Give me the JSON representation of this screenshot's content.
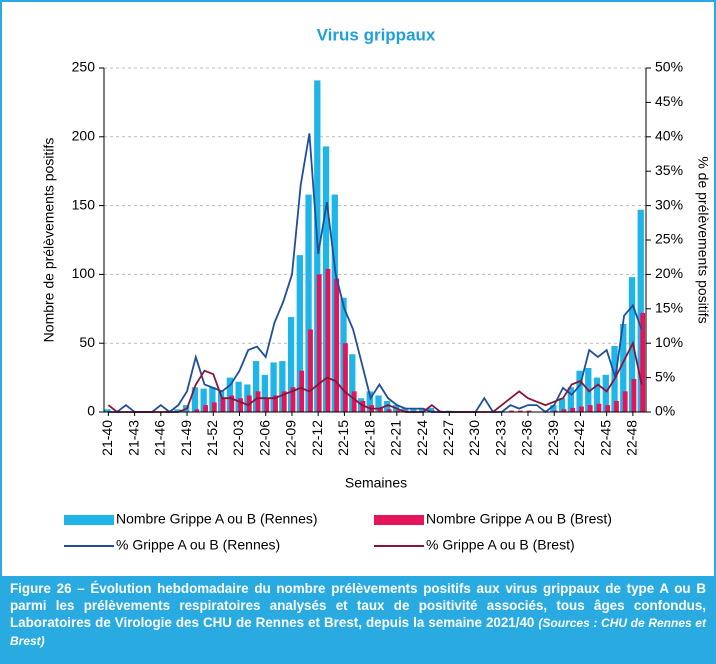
{
  "chart_data": {
    "type": "combo",
    "title": "Virus grippaux",
    "x_label": "Semaines",
    "y_label": "Nombre de prélèvements positifs",
    "y2_label": "% de prélèvements positifs",
    "categories": [
      "21-40",
      null,
      null,
      "21-43",
      null,
      null,
      "21-46",
      null,
      null,
      "21-49",
      null,
      null,
      "21-52",
      null,
      null,
      "22-03",
      null,
      null,
      "22-06",
      null,
      null,
      "22-09",
      null,
      null,
      "22-12",
      null,
      null,
      "22-15",
      null,
      null,
      "22-18",
      null,
      null,
      "22-21",
      null,
      null,
      "22-24",
      null,
      null,
      "22-27",
      null,
      null,
      "22-30",
      null,
      null,
      "22-33",
      null,
      null,
      "22-36",
      null,
      null,
      "22-39",
      null,
      null,
      "22-42",
      null,
      null,
      "22-45",
      null,
      null,
      "22-48",
      null
    ],
    "ylim": [
      0,
      250
    ],
    "yticks": [
      0,
      50,
      100,
      150,
      200,
      250
    ],
    "y2lim": [
      0,
      50
    ],
    "y2ticks": [
      {
        "value": 0,
        "label": "0%"
      },
      {
        "value": 5,
        "label": "5%"
      },
      {
        "value": 10,
        "label": "10%"
      },
      {
        "value": 15,
        "label": "15%"
      },
      {
        "value": 20,
        "label": "20%"
      },
      {
        "value": 25,
        "label": "25%"
      },
      {
        "value": 30,
        "label": "30%"
      },
      {
        "value": 35,
        "label": "35%"
      },
      {
        "value": 40,
        "label": "40%"
      },
      {
        "value": 45,
        "label": "45%"
      },
      {
        "value": 50,
        "label": "50%"
      }
    ],
    "grid": true,
    "series": [
      {
        "name": "Nombre Grippe A ou B (Rennes)",
        "type": "bar",
        "color": "#1fb5e8",
        "values": [
          2,
          0,
          0,
          0,
          0,
          0,
          0,
          1,
          2,
          5,
          18,
          17,
          18,
          15,
          25,
          22,
          20,
          37,
          27,
          36,
          37,
          69,
          114,
          158,
          241,
          193,
          158,
          83,
          42,
          10,
          15,
          12,
          8,
          5,
          3,
          2,
          2,
          3,
          1,
          1,
          0,
          0,
          0,
          0,
          0,
          0,
          0,
          0,
          0,
          0,
          0,
          5,
          10,
          18,
          30,
          32,
          25,
          27,
          48,
          64,
          98,
          147
        ]
      },
      {
        "name": "Nombre Grippe A ou B (Brest)",
        "type": "bar",
        "color": "#e5135a",
        "values": [
          0,
          0,
          0,
          0,
          0,
          0,
          0,
          0,
          0,
          0,
          2,
          5,
          7,
          10,
          12,
          10,
          12,
          15,
          10,
          12,
          15,
          18,
          30,
          60,
          100,
          104,
          97,
          50,
          15,
          8,
          5,
          3,
          2,
          1,
          1,
          0,
          0,
          1,
          0,
          0,
          0,
          0,
          0,
          0,
          0,
          0,
          1,
          1,
          1,
          0,
          0,
          1,
          2,
          3,
          4,
          5,
          6,
          5,
          8,
          15,
          24,
          72
        ]
      },
      {
        "name": "% Grippe A ou B (Rennes)",
        "type": "line",
        "axis": "y2",
        "color": "#1f4e9c",
        "values": [
          0,
          0,
          1,
          0,
          0,
          0,
          1,
          0,
          1,
          3,
          8,
          4,
          3.5,
          3,
          4,
          6,
          9,
          9.5,
          8,
          13,
          16,
          20,
          33,
          40.5,
          23,
          30.5,
          20,
          15,
          12,
          7,
          2,
          4,
          2,
          1,
          0.5,
          0.5,
          0.5,
          0,
          0,
          0,
          0,
          0,
          0,
          2,
          0,
          0,
          1,
          0.5,
          1,
          1,
          0,
          1,
          3.5,
          2.5,
          4,
          9,
          8,
          9,
          5,
          14,
          15.5,
          12
        ]
      },
      {
        "name": "% Grippe A ou B (Brest)",
        "type": "line",
        "axis": "y2",
        "color": "#8b1538",
        "values": [
          1,
          0,
          0,
          0,
          0,
          0,
          0,
          0,
          0,
          0.5,
          4,
          6,
          5.5,
          2,
          2,
          1.5,
          1,
          2,
          2,
          2,
          2.5,
          3,
          3.5,
          3,
          4,
          5,
          4.5,
          3,
          2,
          1,
          0.5,
          0.5,
          1,
          0.5,
          0,
          0,
          0,
          1,
          0,
          0,
          0,
          0,
          0,
          0,
          0,
          1,
          2,
          3,
          2,
          1.5,
          1,
          1.5,
          2,
          4,
          4.5,
          3,
          4,
          3,
          5,
          7.5,
          10,
          4
        ]
      }
    ],
    "caption": "Figure 26 – Évolution hebdomadaire du nombre prélèvements positifs aux virus grippaux de type A ou B parmi les prélèvements respiratoires analysés et taux de positivité associés, tous âges confondus, Laboratoires de Virologie des CHU de Rennes et Brest, depuis la semaine 2021/40",
    "caption_source": "(Sources : CHU de Rennes et Brest)"
  }
}
